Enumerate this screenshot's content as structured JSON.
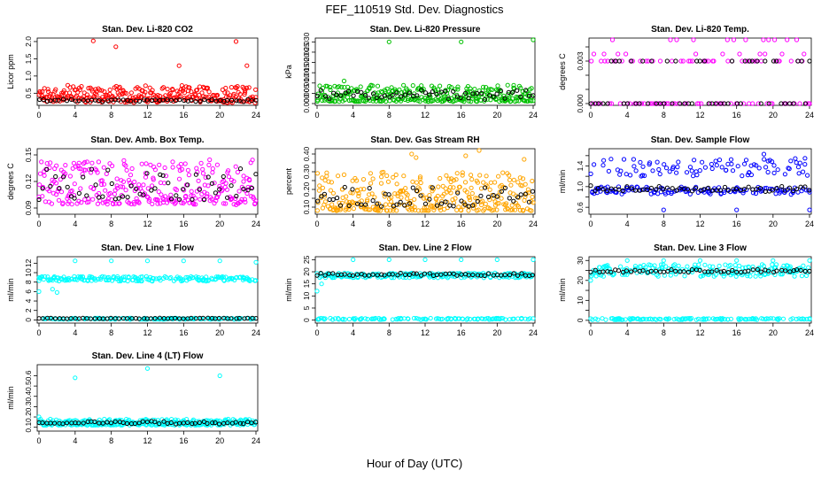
{
  "page": {
    "title": "FEF_110519  Std. Dev. Diagnostics",
    "x_axis_title": "Hour of Day (UTC)"
  },
  "chart_data": [
    {
      "type": "scatter",
      "title": "Stan. Dev. Li-820 CO2",
      "ylabel": "Licor ppm",
      "xlim": [
        0,
        24
      ],
      "xticks": [
        0,
        4,
        8,
        12,
        16,
        20,
        24
      ],
      "ylim": [
        0.2,
        2.05
      ],
      "yticks": [
        0.5,
        1.0,
        1.5,
        2.0
      ],
      "ytick_labels": [
        "0.5",
        "1.0",
        "1.5",
        "2.0"
      ],
      "series": [
        {
          "color": "#ff0000",
          "n": 300,
          "base": [
            0.22,
            0.3
          ],
          "spread": 0.45,
          "outliers": [
            [
              6,
              2.02
            ],
            [
              8.5,
              1.85
            ],
            [
              15.5,
              1.3
            ],
            [
              21.8,
              2.0
            ],
            [
              23,
              1.3
            ]
          ]
        },
        {
          "color": "#000000",
          "n": 55,
          "base": [
            0.25,
            0.3
          ],
          "spread": 0.04,
          "outliers": []
        }
      ]
    },
    {
      "type": "scatter",
      "title": "Stan. Dev. Li-820 Pressure",
      "ylabel": "kPa",
      "xlim": [
        0,
        24
      ],
      "xticks": [
        0,
        4,
        8,
        12,
        16,
        20,
        24
      ],
      "ylim": [
        0,
        0.031
      ],
      "yticks": [
        0.0,
        0.005,
        0.01,
        0.015,
        0.02,
        0.025,
        0.03
      ],
      "ytick_labels": [
        "0.000",
        "0.005",
        "0.010",
        "0.015",
        "0.020",
        "0.025",
        "0.030"
      ],
      "series": [
        {
          "color": "#00c000",
          "n": 320,
          "base": [
            0.001,
            0.001
          ],
          "spread": 0.008,
          "outliers": [
            [
              8,
              0.03
            ],
            [
              16,
              0.03
            ],
            [
              24,
              0.031
            ],
            [
              3,
              0.011
            ]
          ]
        },
        {
          "color": "#000000",
          "n": 55,
          "base": [
            0.002,
            0.004
          ],
          "spread": 0.003,
          "outliers": []
        }
      ]
    },
    {
      "type": "scatter",
      "title": "Stan. Dev. Li-820 Temp.",
      "ylabel": "degrees C",
      "xlim": [
        0,
        24
      ],
      "xticks": [
        0,
        4,
        8,
        12,
        16,
        20,
        24
      ],
      "ylim": [
        0,
        0.0045
      ],
      "yticks": [
        0.0,
        0.001,
        0.002,
        0.003,
        0.004
      ],
      "ytick_labels": [
        "0.000",
        "",
        "",
        "0.003",
        ""
      ],
      "series": [
        {
          "color": "#ff00ff",
          "n": 120,
          "levels": [
            0,
            0.003,
            0.0035,
            0.0045
          ],
          "level_weights": [
            0.5,
            0.35,
            0.1,
            0.05
          ],
          "outliers": []
        },
        {
          "color": "#000000",
          "n": 55,
          "levels": [
            0,
            0.003,
            0.0035
          ],
          "level_weights": [
            0.55,
            0.4,
            0.05
          ],
          "outliers": []
        }
      ]
    },
    {
      "type": "scatter",
      "title": "Stan. Dev. Amb. Box Temp.",
      "ylabel": "degrees C",
      "xlim": [
        0,
        24
      ],
      "xticks": [
        0,
        4,
        8,
        12,
        16,
        20,
        24
      ],
      "ylim": [
        0.085,
        0.155
      ],
      "yticks": [
        0.09,
        0.12,
        0.15
      ],
      "ytick_labels": [
        "0.09",
        "0.12",
        "0.15"
      ],
      "series": [
        {
          "color": "#ff00ff",
          "n": 300,
          "base": [
            0.093,
            0.095
          ],
          "spread": 0.05,
          "outliers": []
        },
        {
          "color": "#000000",
          "n": 55,
          "base": [
            0.098,
            0.1
          ],
          "spread": 0.035,
          "outliers": []
        }
      ]
    },
    {
      "type": "scatter",
      "title": "Stan. Dev. Gas Stream RH",
      "ylabel": "percent",
      "xlim": [
        0,
        24
      ],
      "xticks": [
        0,
        4,
        8,
        12,
        16,
        20,
        24
      ],
      "ylim": [
        0.07,
        0.42
      ],
      "yticks": [
        0.1,
        0.15,
        0.2,
        0.25,
        0.3,
        0.35,
        0.4
      ],
      "ytick_labels": [
        "0.10",
        "",
        "0.20",
        "",
        "0.30",
        "",
        "0.40"
      ],
      "series": [
        {
          "color": "#ffa500",
          "n": 320,
          "base": [
            0.08,
            0.08
          ],
          "spread": 0.22,
          "outliers": [
            [
              11,
              0.38
            ],
            [
              16.5,
              0.39
            ],
            [
              18,
              0.42
            ],
            [
              23,
              0.37
            ],
            [
              10.5,
              0.4
            ]
          ]
        },
        {
          "color": "#000000",
          "n": 55,
          "base": [
            0.1,
            0.11
          ],
          "spread": 0.12,
          "outliers": []
        }
      ]
    },
    {
      "type": "scatter",
      "title": "Stan. Dev. Sample Flow",
      "ylabel": "ml/min",
      "xlim": [
        0,
        24
      ],
      "xticks": [
        0,
        4,
        8,
        12,
        16,
        20,
        24
      ],
      "ylim": [
        0.5,
        1.7
      ],
      "yticks": [
        0.6,
        0.8,
        1.0,
        1.2,
        1.4,
        1.6
      ],
      "ytick_labels": [
        "0.6",
        "",
        "1.0",
        "",
        "1.4",
        ""
      ],
      "series": [
        {
          "color": "#0000ff",
          "n": 220,
          "bands": [
            [
              0.85,
              1.0,
              0.6
            ],
            [
              1.2,
              1.55,
              0.4
            ]
          ],
          "outliers": [
            [
              8,
              0.55
            ],
            [
              16,
              0.55
            ],
            [
              24,
              0.55
            ],
            [
              19,
              1.63
            ]
          ]
        },
        {
          "color": "#000000",
          "n": 55,
          "base": [
            0.9,
            0.95
          ],
          "spread": 0.08,
          "outliers": []
        }
      ]
    },
    {
      "type": "scatter",
      "title": "Stan. Dev. Line 1 Flow",
      "ylabel": "ml/min",
      "xlim": [
        0,
        24
      ],
      "xticks": [
        0,
        4,
        8,
        12,
        16,
        20,
        24
      ],
      "ylim": [
        -0.3,
        13
      ],
      "yticks": [
        0,
        2,
        4,
        6,
        8,
        10,
        12
      ],
      "ytick_labels": [
        "0",
        "2",
        "4",
        "6",
        "8",
        "10",
        "12"
      ],
      "series": [
        {
          "color": "#00ffff",
          "n": 320,
          "bands": [
            [
              8.2,
              9.2,
              0.6
            ],
            [
              0.1,
              0.4,
              0.4
            ]
          ],
          "outliers": [
            [
              0,
              6.0
            ],
            [
              1.5,
              6.5
            ],
            [
              2,
              5.8
            ],
            [
              4,
              12.5
            ],
            [
              8,
              12.5
            ],
            [
              12,
              12.5
            ],
            [
              16,
              12.5
            ],
            [
              20,
              12.5
            ],
            [
              24,
              12.2
            ]
          ]
        },
        {
          "color": "#000000",
          "n": 55,
          "base": [
            0.25,
            0.35
          ],
          "spread": 0.1,
          "outliers": []
        }
      ]
    },
    {
      "type": "scatter",
      "title": "Stan. Dev. Line 2 Flow",
      "ylabel": "ml/min",
      "xlim": [
        0,
        24
      ],
      "xticks": [
        0,
        4,
        8,
        12,
        16,
        20,
        24
      ],
      "ylim": [
        -0.5,
        25.5
      ],
      "yticks": [
        0,
        5,
        10,
        15,
        20,
        25
      ],
      "ytick_labels": [
        "0",
        "5",
        "10",
        "15",
        "20",
        "25"
      ],
      "series": [
        {
          "color": "#00ffff",
          "n": 320,
          "bands": [
            [
              17.5,
              19.5,
              0.6
            ],
            [
              0.2,
              0.8,
              0.4
            ]
          ],
          "outliers": [
            [
              0,
              12.0
            ],
            [
              0.5,
              15
            ],
            [
              4,
              25
            ],
            [
              8,
              25
            ],
            [
              12,
              25
            ],
            [
              16,
              25
            ],
            [
              20,
              25
            ],
            [
              24,
              25
            ]
          ]
        },
        {
          "color": "#000000",
          "n": 55,
          "base": [
            18.3,
            18.5
          ],
          "spread": 1.0,
          "outliers": []
        }
      ]
    },
    {
      "type": "scatter",
      "title": "Stan. Dev. Line 3 Flow",
      "ylabel": "ml/min",
      "xlim": [
        0,
        24
      ],
      "xticks": [
        0,
        4,
        8,
        12,
        16,
        20,
        24
      ],
      "ylim": [
        -0.5,
        31
      ],
      "yticks": [
        0,
        5,
        10,
        15,
        20,
        25,
        30
      ],
      "ytick_labels": [
        "0",
        "",
        "10",
        "",
        "20",
        "",
        "30"
      ],
      "series": [
        {
          "color": "#00ffff",
          "n": 320,
          "bands": [
            [
              22,
              28,
              0.6
            ],
            [
              0.3,
              1.0,
              0.4
            ]
          ],
          "outliers": [
            [
              0,
              20
            ],
            [
              4,
              30
            ],
            [
              8,
              30
            ],
            [
              12,
              30
            ],
            [
              16,
              30
            ],
            [
              20,
              30
            ],
            [
              24,
              30
            ]
          ]
        },
        {
          "color": "#000000",
          "n": 55,
          "base": [
            24,
            24.3
          ],
          "spread": 1.4,
          "outliers": []
        }
      ]
    },
    {
      "type": "scatter",
      "title": "Stan. Dev. Line 4 (LT) Flow",
      "ylabel": "ml/min",
      "xlim": [
        0,
        24
      ],
      "xticks": [
        0,
        4,
        8,
        12,
        16,
        20,
        24
      ],
      "ylim": [
        0.08,
        0.69
      ],
      "yticks": [
        0.1,
        0.2,
        0.3,
        0.4,
        0.5,
        0.6
      ],
      "ytick_labels": [
        "0.1",
        "0.2",
        "0.3",
        "0.4",
        "0.5",
        "0.6"
      ],
      "series": [
        {
          "color": "#00ffff",
          "n": 320,
          "base": [
            0.12,
            0.12
          ],
          "spread": 0.06,
          "outliers": [
            [
              4,
              0.58
            ],
            [
              12,
              0.67
            ],
            [
              20,
              0.6
            ],
            [
              0,
              0.2
            ]
          ]
        },
        {
          "color": "#000000",
          "n": 55,
          "base": [
            0.13,
            0.14
          ],
          "spread": 0.025,
          "outliers": []
        }
      ]
    }
  ]
}
